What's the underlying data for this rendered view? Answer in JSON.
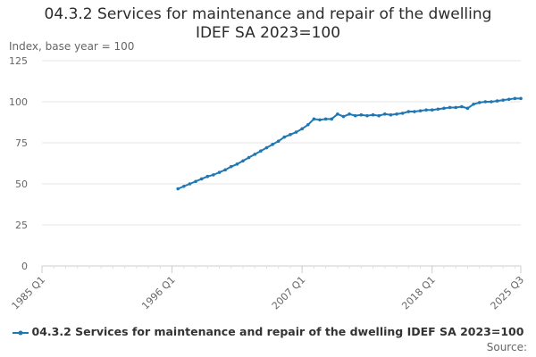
{
  "title_line1": "04.3.2 Services for maintenance and repair of the dwelling",
  "title_line2": "IDEF SA 2023=100",
  "source_label": "Source:",
  "colors": {
    "series": "#1f78b4",
    "grid": "#e6e6e6",
    "axis": "#cccccc",
    "text": "#666666"
  },
  "chart_data": {
    "type": "line",
    "title": "04.3.2 Services for maintenance and repair of the dwelling IDEF SA 2023=100",
    "ylabel": "Index, base year = 100",
    "xlabel": "",
    "ylim": [
      0,
      125
    ],
    "yticks": [
      0,
      25,
      50,
      75,
      100,
      125
    ],
    "xlim": [
      "1985 Q1",
      "2025 Q3"
    ],
    "xticks": [
      "1985 Q1",
      "1996 Q1",
      "2007 Q1",
      "2018 Q1",
      "2025 Q3"
    ],
    "grid": true,
    "legend_position": "bottom",
    "series": [
      {
        "name": "04.3.2 Services for maintenance and repair of the dwelling IDEF SA 2023=100",
        "color": "#1f78b4",
        "points": [
          [
            "1996 Q3",
            47.0
          ],
          [
            "1997 Q1",
            48.5
          ],
          [
            "1997 Q3",
            50.0
          ],
          [
            "1998 Q1",
            51.5
          ],
          [
            "1998 Q3",
            53.0
          ],
          [
            "1999 Q1",
            54.5
          ],
          [
            "1999 Q3",
            55.5
          ],
          [
            "2000 Q1",
            57.0
          ],
          [
            "2000 Q3",
            58.5
          ],
          [
            "2001 Q1",
            60.5
          ],
          [
            "2001 Q3",
            62.0
          ],
          [
            "2002 Q1",
            64.0
          ],
          [
            "2002 Q3",
            66.0
          ],
          [
            "2003 Q1",
            68.0
          ],
          [
            "2003 Q3",
            70.0
          ],
          [
            "2004 Q1",
            72.0
          ],
          [
            "2004 Q3",
            74.0
          ],
          [
            "2005 Q1",
            76.0
          ],
          [
            "2005 Q3",
            78.5
          ],
          [
            "2006 Q1",
            80.0
          ],
          [
            "2006 Q3",
            81.5
          ],
          [
            "2007 Q1",
            83.5
          ],
          [
            "2007 Q3",
            86.0
          ],
          [
            "2008 Q1",
            89.5
          ],
          [
            "2008 Q3",
            89.0
          ],
          [
            "2009 Q1",
            89.5
          ],
          [
            "2009 Q3",
            89.5
          ],
          [
            "2010 Q1",
            92.5
          ],
          [
            "2010 Q3",
            91.0
          ],
          [
            "2011 Q1",
            92.5
          ],
          [
            "2011 Q3",
            91.5
          ],
          [
            "2012 Q1",
            92.0
          ],
          [
            "2012 Q3",
            91.5
          ],
          [
            "2013 Q1",
            92.0
          ],
          [
            "2013 Q3",
            91.5
          ],
          [
            "2014 Q1",
            92.5
          ],
          [
            "2014 Q3",
            92.0
          ],
          [
            "2015 Q1",
            92.5
          ],
          [
            "2015 Q3",
            93.0
          ],
          [
            "2016 Q1",
            94.0
          ],
          [
            "2016 Q3",
            94.0
          ],
          [
            "2017 Q1",
            94.5
          ],
          [
            "2017 Q3",
            95.0
          ],
          [
            "2018 Q1",
            95.0
          ],
          [
            "2018 Q3",
            95.5
          ],
          [
            "2019 Q1",
            96.0
          ],
          [
            "2019 Q3",
            96.5
          ],
          [
            "2020 Q1",
            96.5
          ],
          [
            "2020 Q3",
            97.0
          ],
          [
            "2021 Q1",
            96.0
          ],
          [
            "2021 Q3",
            98.5
          ],
          [
            "2022 Q1",
            99.5
          ],
          [
            "2022 Q3",
            100.0
          ],
          [
            "2023 Q1",
            100.0
          ],
          [
            "2023 Q3",
            100.5
          ],
          [
            "2024 Q1",
            101.0
          ],
          [
            "2024 Q3",
            101.5
          ],
          [
            "2025 Q1",
            102.0
          ],
          [
            "2025 Q3",
            102.0
          ]
        ]
      }
    ]
  }
}
